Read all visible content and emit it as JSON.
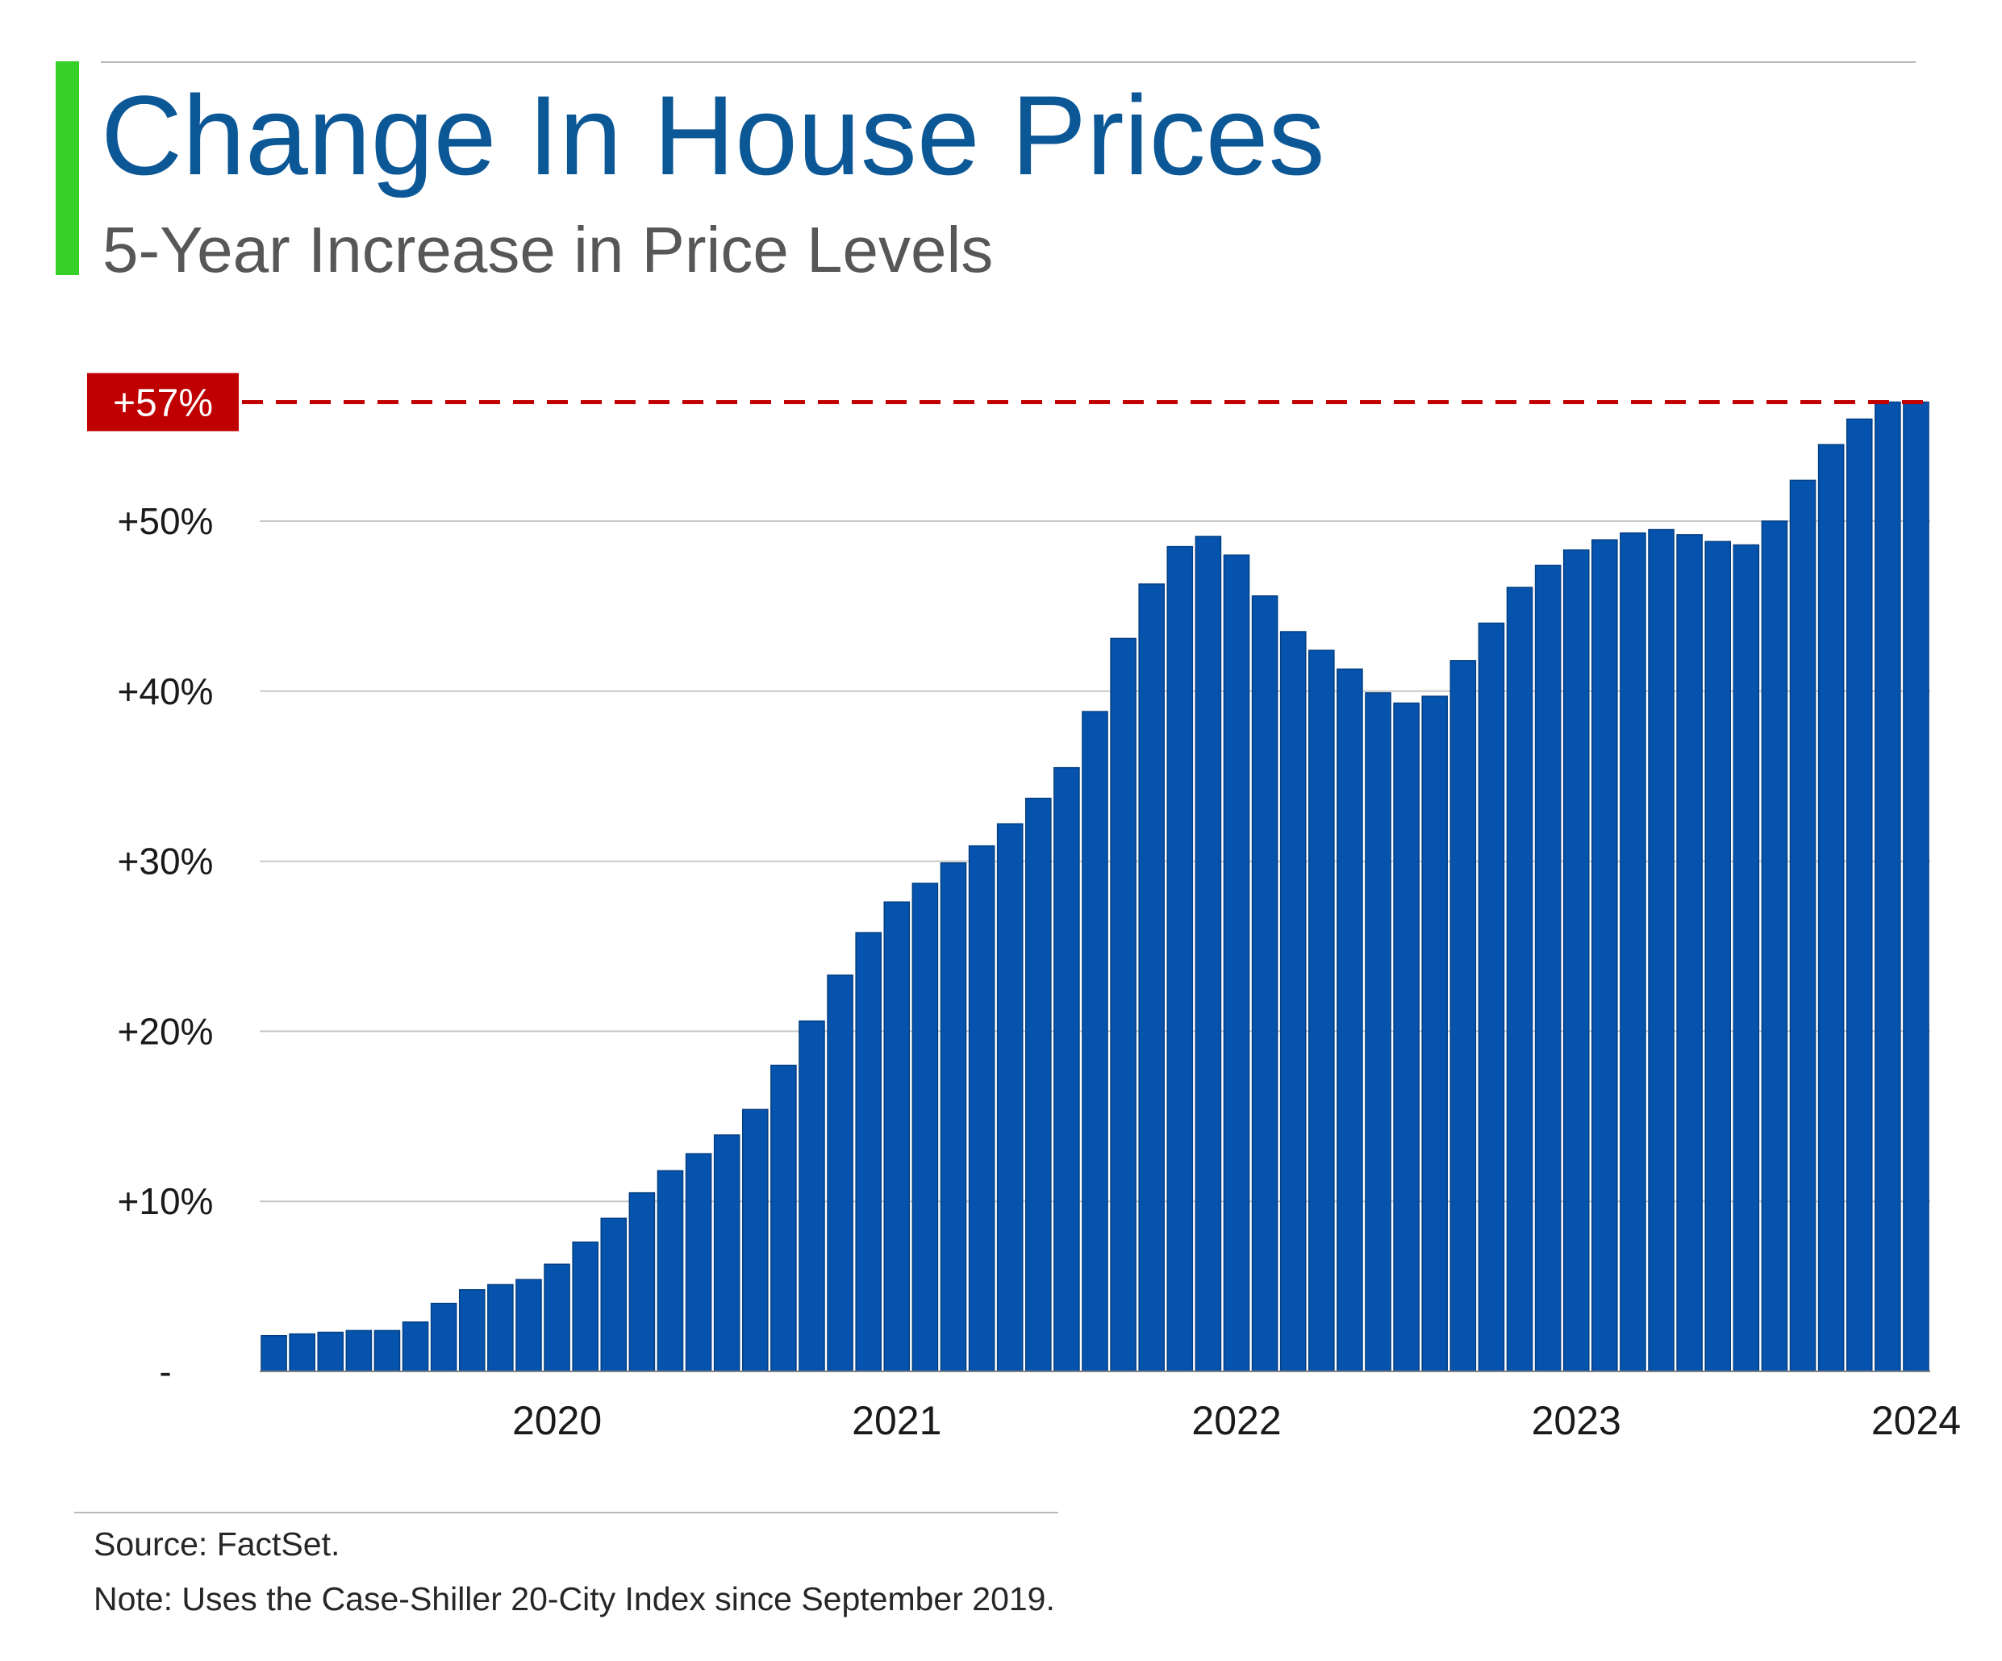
{
  "header": {
    "title": "Change In House Prices",
    "subtitle": "5-Year Increase in Price Levels"
  },
  "footer": {
    "source": "Source: FactSet.",
    "note": "Note: Uses the Case-Shiller 20-City Index since September 2019."
  },
  "colors": {
    "bar": "#0653ad",
    "bar_edge": "#033f84",
    "title": "#0c5796",
    "accent": "#37d028",
    "callout": "#c00000",
    "grid": "#c8c8c8"
  },
  "chart_data": {
    "type": "bar",
    "title": "Change In House Prices",
    "subtitle": "5-Year Increase in Price Levels",
    "xlabel": "",
    "ylabel": "",
    "ylim": [
      0,
      57
    ],
    "y_ticks": [
      {
        "value": 0,
        "label": "-"
      },
      {
        "value": 10,
        "label": "+10%"
      },
      {
        "value": 20,
        "label": "+20%"
      },
      {
        "value": 30,
        "label": "+30%"
      },
      {
        "value": 40,
        "label": "+40%"
      },
      {
        "value": 50,
        "label": "+50%"
      }
    ],
    "x_ticks": [
      {
        "index": 10,
        "label": "2020"
      },
      {
        "index": 22,
        "label": "2021"
      },
      {
        "index": 34,
        "label": "2022"
      },
      {
        "index": 46,
        "label": "2023"
      },
      {
        "index": 58,
        "label": "2024"
      }
    ],
    "reference_line": {
      "value": 57,
      "label": "+57%",
      "style": "dashed"
    },
    "series": [
      {
        "name": "Case-Shiller 20-City Index change since September 2019 (%)",
        "values": [
          2.1,
          2.2,
          2.3,
          2.4,
          2.4,
          2.9,
          4.0,
          4.8,
          5.1,
          5.4,
          6.3,
          7.6,
          9.0,
          10.5,
          11.8,
          12.8,
          13.9,
          15.4,
          18.0,
          20.6,
          23.3,
          25.8,
          27.6,
          28.7,
          29.9,
          30.9,
          32.2,
          33.7,
          35.5,
          38.8,
          43.1,
          46.3,
          48.5,
          49.1,
          48.0,
          45.6,
          43.5,
          42.4,
          41.3,
          39.9,
          39.3,
          39.7,
          41.8,
          44.0,
          46.1,
          47.4,
          48.3,
          48.9,
          49.3,
          49.5,
          49.2,
          48.8,
          48.6,
          50.0,
          52.4,
          54.5,
          56.0,
          57.0,
          57.0
        ]
      }
    ]
  }
}
